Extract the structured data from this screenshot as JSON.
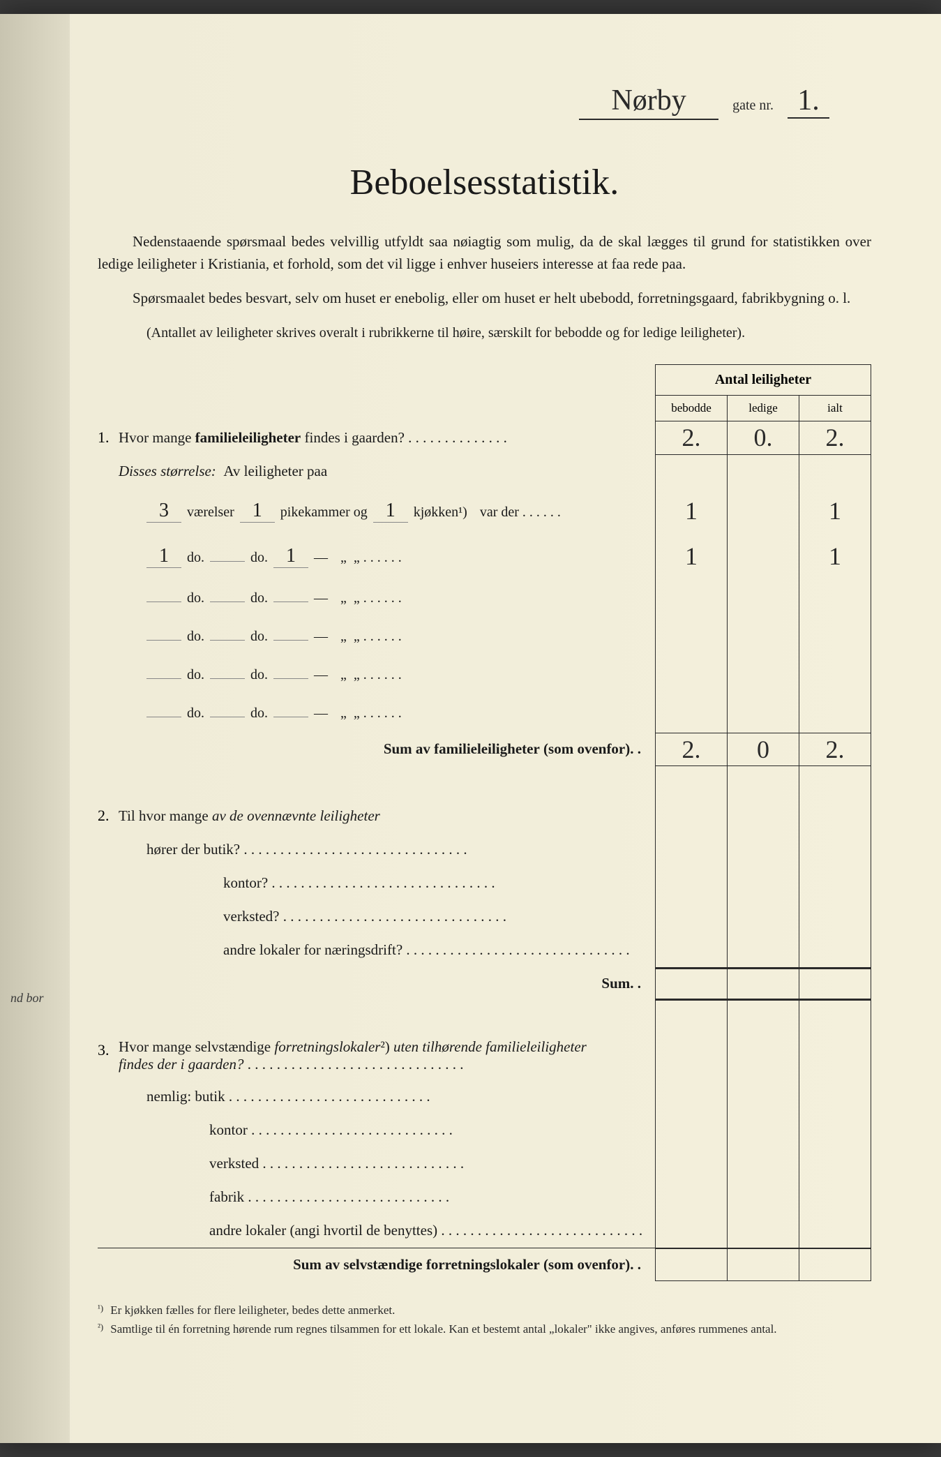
{
  "header": {
    "street_name": "Nørby",
    "gate_label": "gate nr.",
    "gate_number": "1."
  },
  "title": "Beboelsesstatistik.",
  "intro_paragraphs": [
    "Nedenstaaende spørsmaal bedes velvillig utfyldt saa nøiagtig som mulig, da de skal lægges til grund for statistikken over ledige leiligheter i Kristiania, et forhold, som det vil ligge i enhver huseiers interesse at faa rede paa.",
    "Spørsmaalet bedes besvart, selv om huset er enebolig, eller om huset er helt ubebodd, forretningsgaard, fabrikbygning o. l."
  ],
  "note": "(Antallet av leiligheter skrives overalt i rubrikkerne til høire, særskilt for bebodde og for ledige leiligheter).",
  "table_header": {
    "title": "Antal leiligheter",
    "cols": [
      "bebodde",
      "ledige",
      "ialt"
    ]
  },
  "q1": {
    "num": "1.",
    "text": "Hvor mange familieleiligheter findes i gaarden?",
    "values": [
      "2.",
      "0.",
      "2."
    ],
    "disses": "Disses størrelse:",
    "av_leil": "Av leiligheter paa",
    "rows": [
      {
        "v": "3",
        "p": "1",
        "k": "1",
        "suffix": "var der",
        "cells": [
          "1",
          "",
          "1"
        ]
      },
      {
        "v": "1",
        "p": "",
        "k": "1",
        "suffix": "„ „",
        "cells": [
          "1",
          "",
          "1"
        ]
      },
      {
        "v": "",
        "p": "",
        "k": "",
        "suffix": "„ „",
        "cells": [
          "",
          "",
          ""
        ]
      },
      {
        "v": "",
        "p": "",
        "k": "",
        "suffix": "„ „",
        "cells": [
          "",
          "",
          ""
        ]
      },
      {
        "v": "",
        "p": "",
        "k": "",
        "suffix": "„ „",
        "cells": [
          "",
          "",
          ""
        ]
      },
      {
        "v": "",
        "p": "",
        "k": "",
        "suffix": "„ „",
        "cells": [
          "",
          "",
          ""
        ]
      }
    ],
    "labels": {
      "v": "værelser",
      "p": "pikekammer og",
      "k": "kjøkken¹)",
      "do": "do."
    },
    "sum_label": "Sum av familieleiligheter (som ovenfor). .",
    "sum_values": [
      "2.",
      "0",
      "2."
    ]
  },
  "q2": {
    "num": "2.",
    "text": "Til hvor mange av de ovennævnte leiligheter",
    "items": [
      "hører der butik?",
      "kontor?",
      "verksted?",
      "andre lokaler for næringsdrift?"
    ],
    "sum": "Sum. ."
  },
  "q3": {
    "num": "3.",
    "text": "Hvor mange selvstændige forretningslokaler²) uten tilhørende familieleiligheter findes der i gaarden?",
    "nemlig": "nemlig:",
    "items": [
      "butik",
      "kontor",
      "verksted",
      "fabrik",
      "andre lokaler (angi hvortil de benyttes)"
    ],
    "sum_label": "Sum av selvstændige forretningslokaler (som ovenfor). ."
  },
  "footnotes": [
    {
      "mark": "¹)",
      "text": "Er kjøkken fælles for flere leiligheter, bedes dette anmerket."
    },
    {
      "mark": "²)",
      "text": "Samtlige til én forretning hørende rum regnes tilsammen for ett lokale. Kan et bestemt antal „lokaler\" ikke angives, anføres rummenes antal."
    }
  ],
  "margin_text": "nd bor",
  "colors": {
    "paper": "#f4f0dc",
    "ink": "#1a1a1a",
    "border": "#2a2a2a"
  }
}
